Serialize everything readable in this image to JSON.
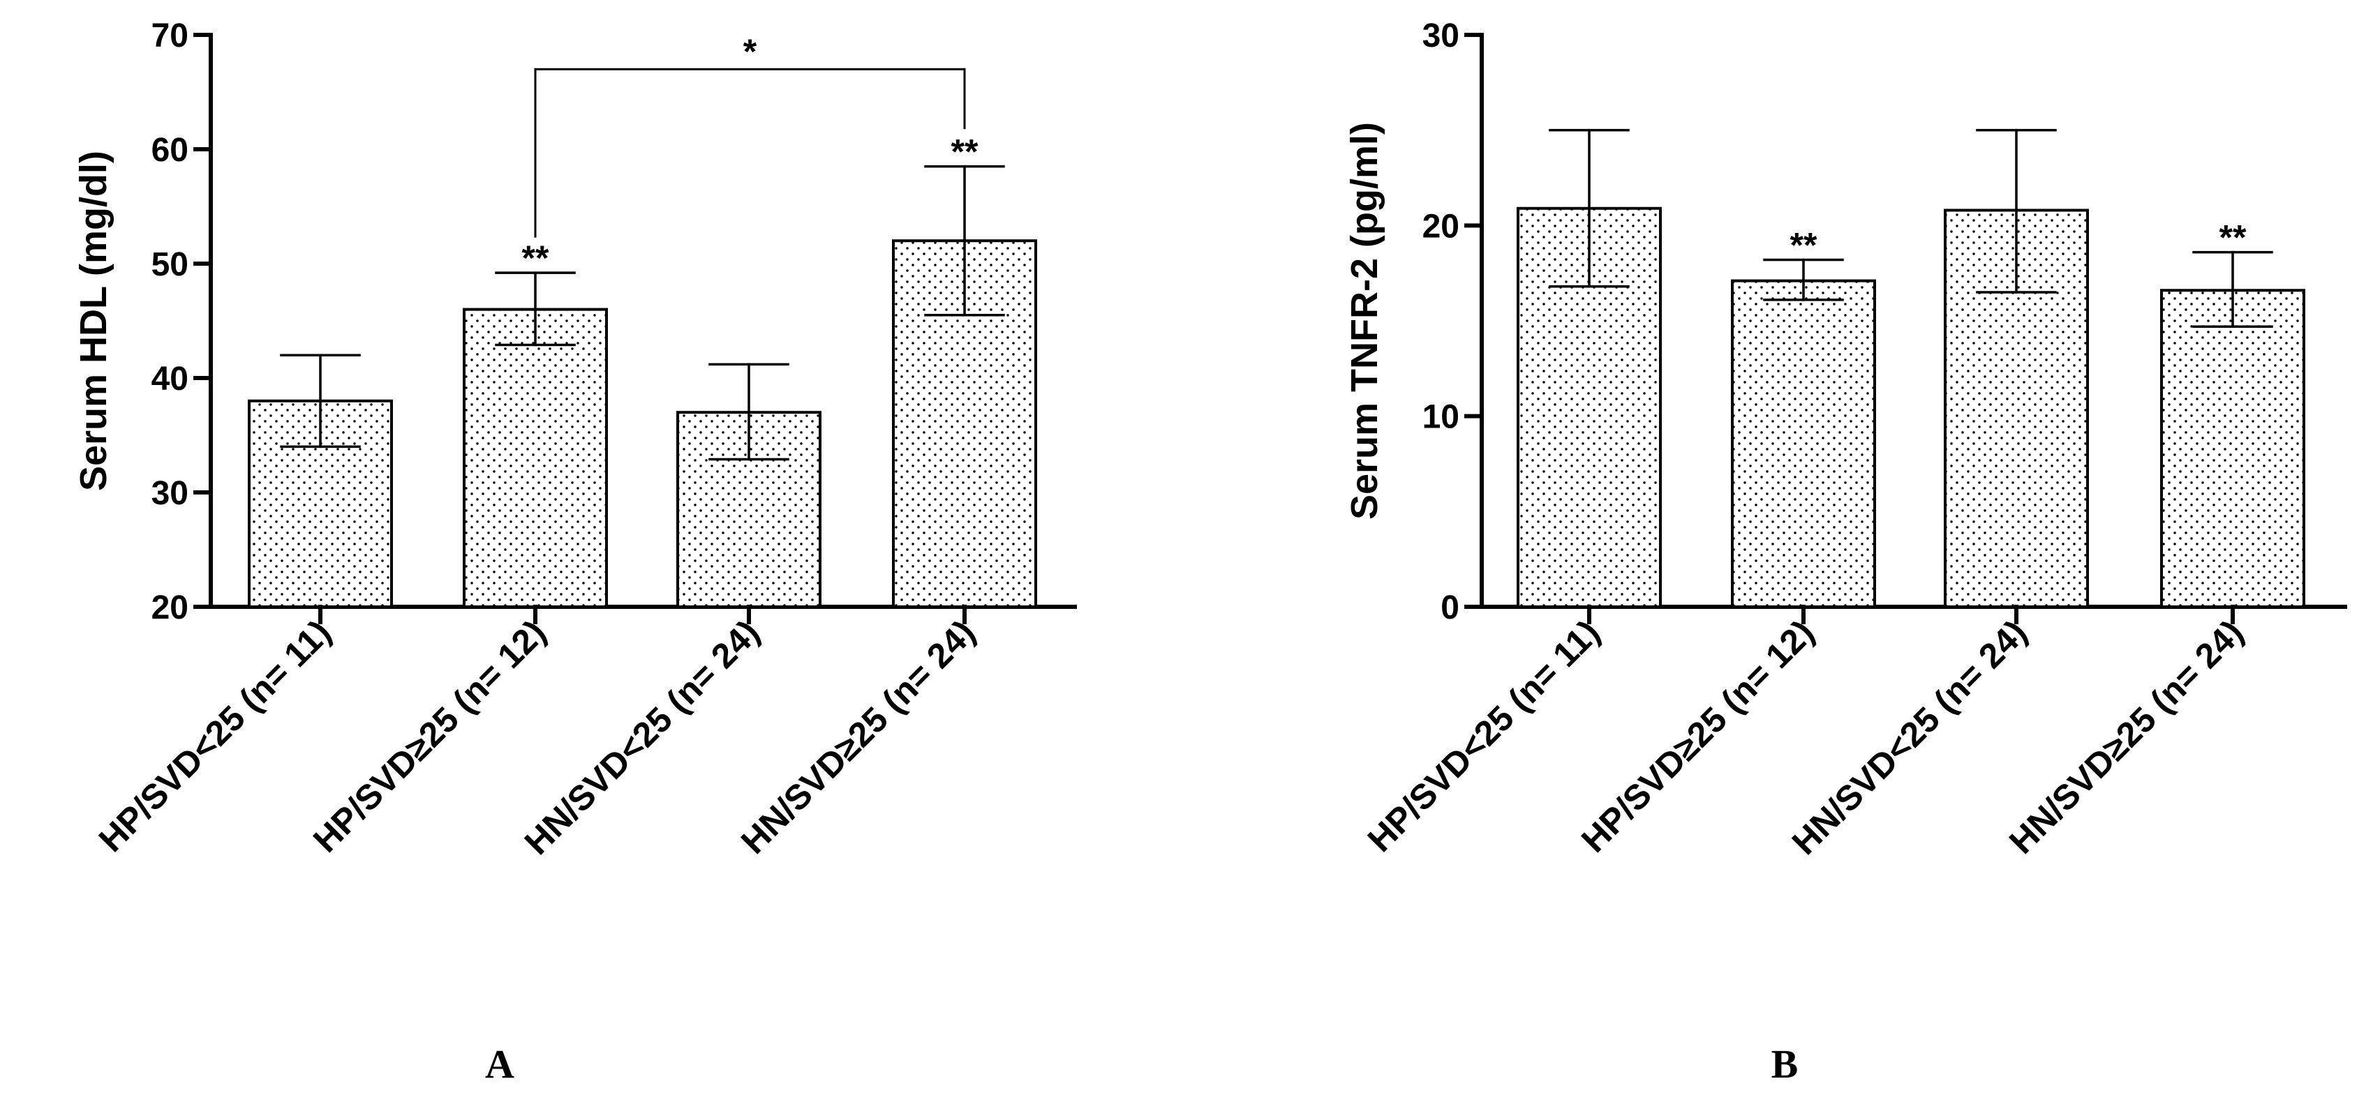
{
  "chart_data": [
    {
      "panel_label": "A",
      "type": "bar",
      "categories": [
        "HP/SVD<25 (n= 11)",
        "HP/SVD≥25 (n= 12)",
        "HN/SVD<25 (n= 24)",
        "HN/SVD≥25 (n= 24)"
      ],
      "values": [
        38,
        46,
        37,
        52
      ],
      "error_upper": [
        42,
        49.2,
        41.2,
        58.5
      ],
      "error_lower": [
        34,
        42.9,
        32.9,
        45.5
      ],
      "significance": [
        "",
        "**",
        "",
        "**"
      ],
      "comparisons": [
        {
          "from": 1,
          "to": 3,
          "label": "*",
          "y": 67
        }
      ],
      "xlabel": "",
      "ylabel": "Serum HDL (mg/dl)",
      "ylim": [
        20,
        70
      ],
      "yticks": [
        20,
        30,
        40,
        50,
        60,
        70
      ],
      "fill": "dotted",
      "grid": false
    },
    {
      "panel_label": "B",
      "type": "bar",
      "categories": [
        "HP/SVD<25 (n= 11)",
        "HP/SVD≥25 (n= 12)",
        "HN/SVD<25 (n= 24)",
        "HN/SVD≥25 (n= 24)"
      ],
      "values": [
        20.9,
        17.1,
        20.8,
        16.6
      ],
      "error_upper": [
        25,
        18.2,
        25,
        18.6
      ],
      "error_lower": [
        16.8,
        16.1,
        16.5,
        14.7
      ],
      "significance": [
        "",
        "**",
        "",
        "**"
      ],
      "comparisons": [],
      "xlabel": "",
      "ylabel": "Serum TNFR-2 (pg/ml)",
      "ylim": [
        0,
        30
      ],
      "yticks": [
        0,
        10,
        20,
        30
      ],
      "fill": "dotted",
      "grid": false
    }
  ],
  "colors": {
    "ink": "#000000",
    "bar_fill": "#ffffff",
    "dots": "#000000"
  }
}
